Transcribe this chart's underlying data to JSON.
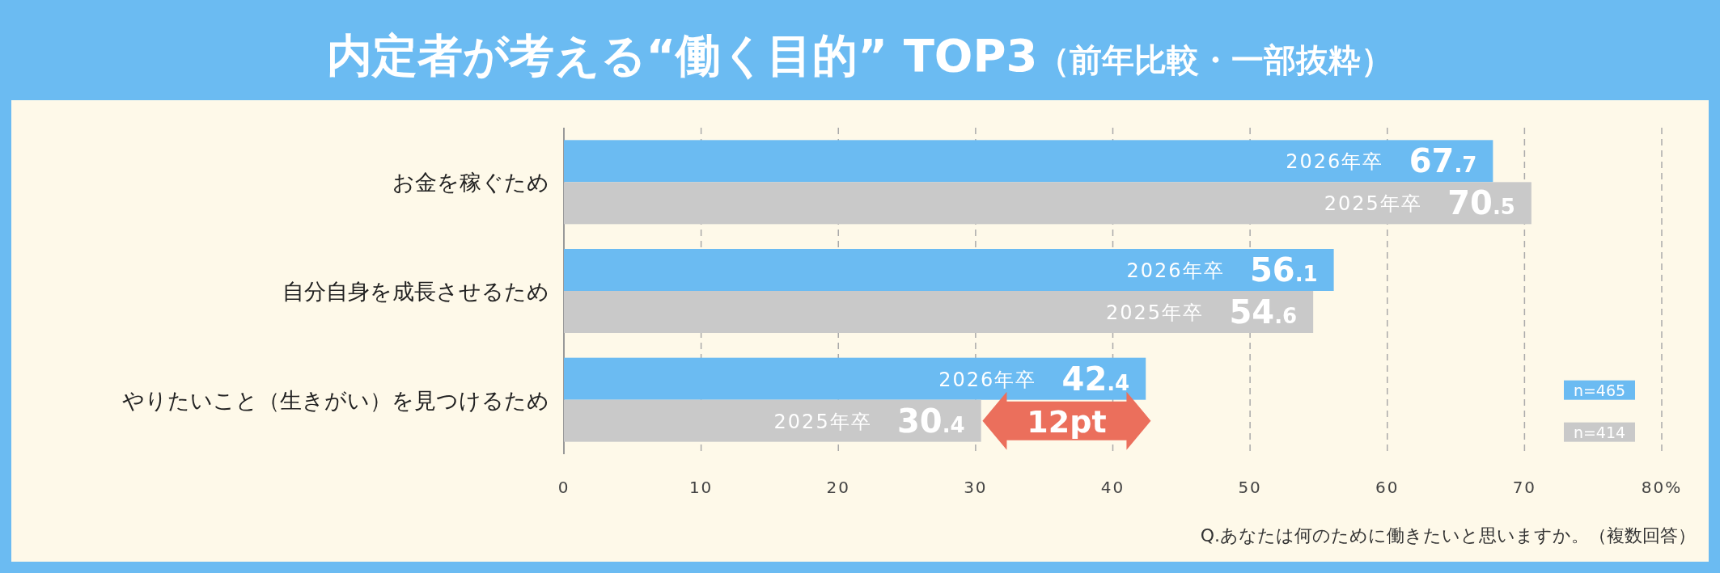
{
  "chart_data": {
    "type": "bar",
    "orientation": "horizontal",
    "title": "内定者が考える“働く目的” TOP3",
    "subtitle": "（前年比較・一部抜粋）",
    "categories": [
      "お金を稼ぐため",
      "自分自身を成長させるため",
      "やりたいこと（生きがい）を見つけるため"
    ],
    "series": [
      {
        "name": "2026年卒",
        "color": "#6bbbf2",
        "values": [
          67.7,
          56.1,
          42.4
        ]
      },
      {
        "name": "2025年卒",
        "color": "#c9c9c9",
        "values": [
          70.5,
          54.6,
          30.4
        ]
      }
    ],
    "data_labels": true,
    "xlim": [
      0,
      80
    ],
    "xticks": [
      0,
      10,
      20,
      30,
      40,
      50,
      60,
      70,
      {
        "value": 80,
        "label": "80%"
      }
    ],
    "grid": "x",
    "annotations": [
      {
        "text": "12pt",
        "x": 36.4,
        "y": "やりたいこと（生きがい）を見つけるため"
      },
      "n=465",
      "n=414",
      "Q.あなたは何のために働きたいと思いますか。（複数回答）"
    ]
  }
}
